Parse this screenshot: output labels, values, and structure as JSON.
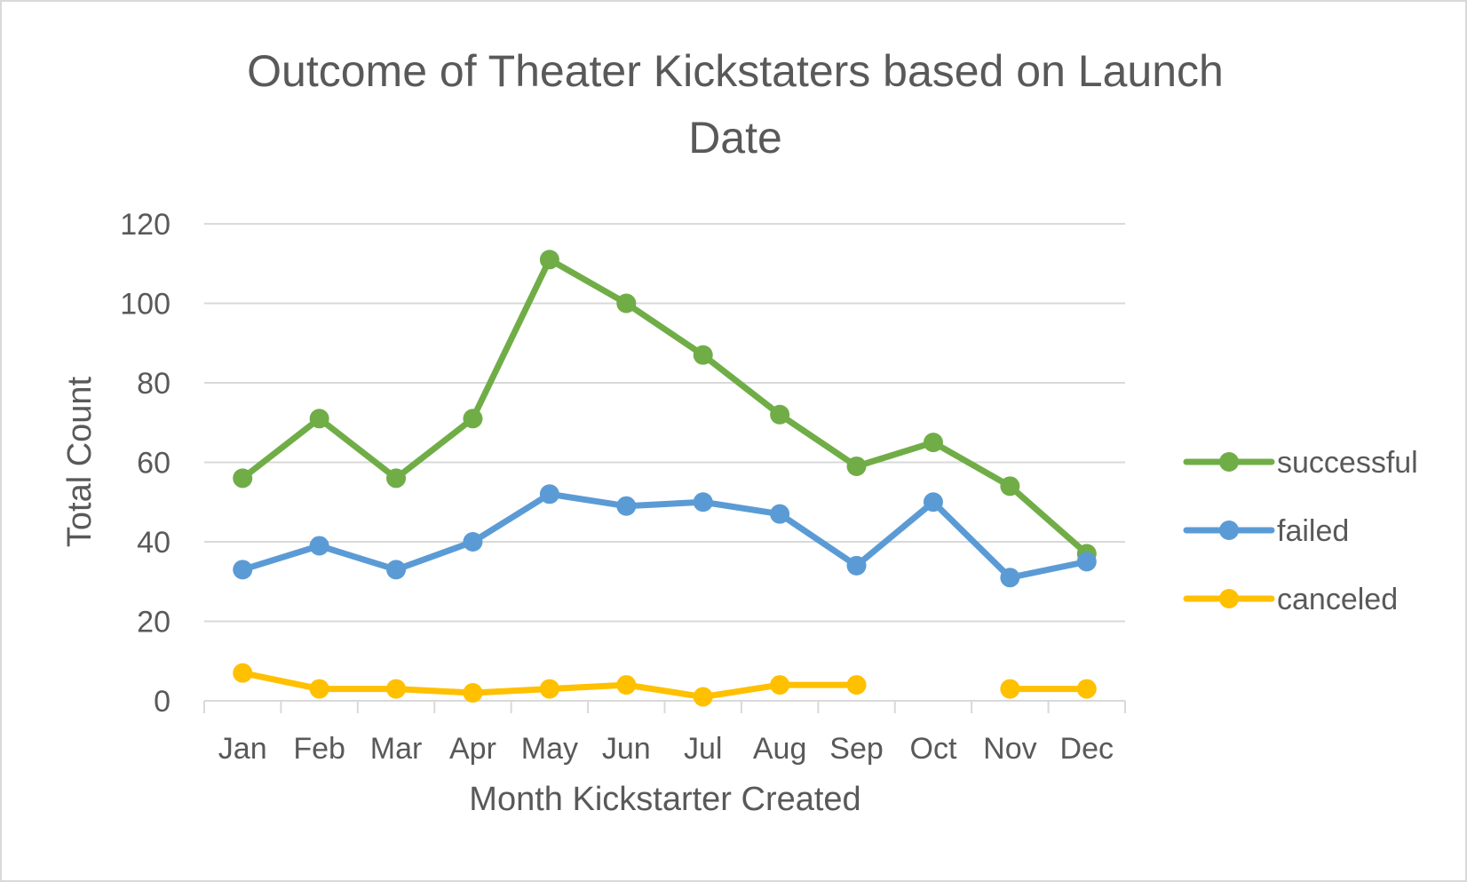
{
  "chart_data": {
    "type": "line",
    "title_lines": [
      "Outcome of Theater Kickstaters based on Launch",
      "Date"
    ],
    "xlabel": "Month Kickstarter Created",
    "ylabel": "Total Count",
    "categories": [
      "Jan",
      "Feb",
      "Mar",
      "Apr",
      "May",
      "Jun",
      "Jul",
      "Aug",
      "Sep",
      "Oct",
      "Nov",
      "Dec"
    ],
    "ylim": [
      0,
      120
    ],
    "yticks": [
      0,
      20,
      40,
      60,
      80,
      100,
      120
    ],
    "grid": true,
    "legend_position": "right",
    "series": [
      {
        "name": "successful",
        "color": "#70ad47",
        "values": [
          56,
          71,
          56,
          71,
          111,
          100,
          87,
          72,
          59,
          65,
          54,
          37
        ]
      },
      {
        "name": "failed",
        "color": "#5b9bd5",
        "values": [
          33,
          39,
          33,
          40,
          52,
          49,
          50,
          47,
          34,
          50,
          31,
          35
        ]
      },
      {
        "name": "canceled",
        "color": "#ffc000",
        "values": [
          7,
          3,
          3,
          2,
          3,
          4,
          1,
          4,
          4,
          null,
          3,
          3
        ]
      }
    ]
  }
}
